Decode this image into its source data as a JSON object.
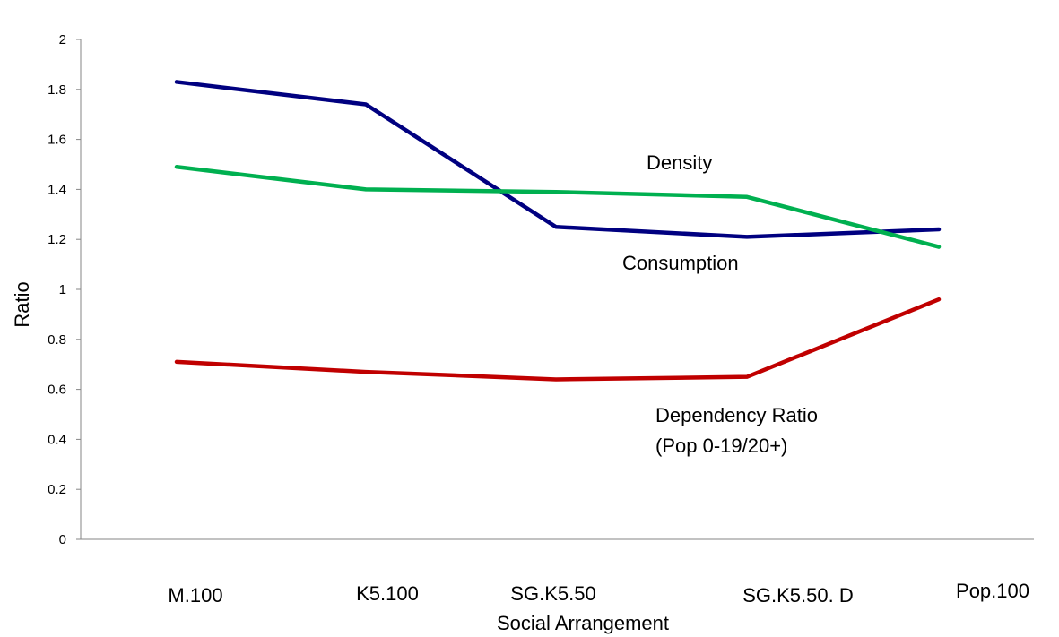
{
  "chart_data": {
    "type": "line",
    "title": "",
    "xlabel": "Social Arrangement",
    "ylabel": "Ratio",
    "ylim": [
      0,
      2
    ],
    "yticks": [
      "0",
      "0.2",
      "0.4",
      "0.6",
      "0.8",
      "1",
      "1.2",
      "1.4",
      "1.6",
      "1.8",
      "2"
    ],
    "categories": [
      "M.100",
      "K5.100",
      "SG.K5.50",
      "SG.K5.50. D",
      "Pop.100"
    ],
    "grid": false,
    "series": [
      {
        "name": "Consumption",
        "color": "#000080",
        "values": [
          1.83,
          1.74,
          1.25,
          1.21,
          1.24
        ]
      },
      {
        "name": "Density",
        "color": "#00B050",
        "values": [
          1.49,
          1.4,
          1.39,
          1.37,
          1.17
        ]
      },
      {
        "name": "Dependency Ratio",
        "label_line2": "(Pop 0-19/20+)",
        "color": "#C00000",
        "values": [
          0.71,
          0.67,
          0.64,
          0.65,
          0.96
        ]
      }
    ]
  }
}
